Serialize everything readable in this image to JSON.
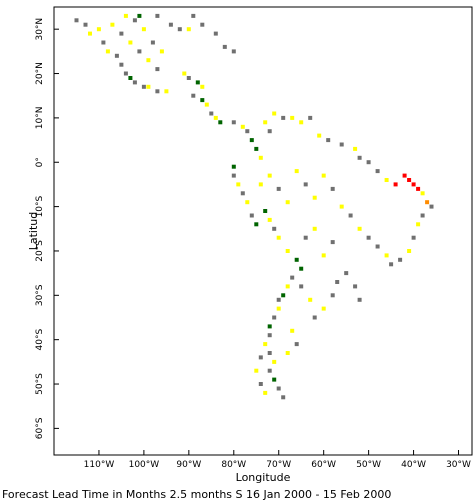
{
  "map": {
    "x_axis_label": "Longitude",
    "y_axis_label": "Latitud",
    "caption": "Forecast Lead Time in Months 2.5 months S 16 Jan 2000 - 15 Feb 2000",
    "lon_range": [
      -120,
      -27
    ],
    "lat_range": [
      -66,
      35
    ],
    "lon_ticks": [
      {
        "value": -110,
        "label": "110°W"
      },
      {
        "value": -100,
        "label": "100°W"
      },
      {
        "value": -90,
        "label": "90°W"
      },
      {
        "value": -80,
        "label": "80°W"
      },
      {
        "value": -70,
        "label": "70°W"
      },
      {
        "value": -60,
        "label": "60°W"
      },
      {
        "value": -50,
        "label": "50°W"
      },
      {
        "value": -40,
        "label": "40°W"
      },
      {
        "value": -30,
        "label": "30°W"
      }
    ],
    "lat_ticks": [
      {
        "value": 30,
        "label": "30°N"
      },
      {
        "value": 20,
        "label": "20°N"
      },
      {
        "value": 10,
        "label": "10°N"
      },
      {
        "value": 0,
        "label": "0°"
      },
      {
        "value": -10,
        "label": "10°S"
      },
      {
        "value": -20,
        "label": "20°S"
      },
      {
        "value": -30,
        "label": "30°S"
      },
      {
        "value": -40,
        "label": "40°S"
      },
      {
        "value": -50,
        "label": "50°S"
      },
      {
        "value": -60,
        "label": "60°S"
      }
    ],
    "colors": {
      "gray": "#707070",
      "yellow": "#ffff00",
      "green": "#006400",
      "red": "#ff0000",
      "orange": "#ff8c00"
    },
    "cells": [
      {
        "lon": -115,
        "lat": 32,
        "color": "gray"
      },
      {
        "lon": -113,
        "lat": 31,
        "color": "gray"
      },
      {
        "lon": -112,
        "lat": 29,
        "color": "yellow"
      },
      {
        "lon": -110,
        "lat": 30,
        "color": "yellow"
      },
      {
        "lon": -109,
        "lat": 27,
        "color": "gray"
      },
      {
        "lon": -108,
        "lat": 25,
        "color": "yellow"
      },
      {
        "lon": -106,
        "lat": 24,
        "color": "gray"
      },
      {
        "lon": -105,
        "lat": 22,
        "color": "gray"
      },
      {
        "lon": -104,
        "lat": 20,
        "color": "gray"
      },
      {
        "lon": -103,
        "lat": 19,
        "color": "green"
      },
      {
        "lon": -102,
        "lat": 18,
        "color": "gray"
      },
      {
        "lon": -100,
        "lat": 17,
        "color": "gray"
      },
      {
        "lon": -99,
        "lat": 17,
        "color": "yellow"
      },
      {
        "lon": -97,
        "lat": 16,
        "color": "gray"
      },
      {
        "lon": -95,
        "lat": 16,
        "color": "yellow"
      },
      {
        "lon": -107,
        "lat": 31,
        "color": "yellow"
      },
      {
        "lon": -105,
        "lat": 29,
        "color": "gray"
      },
      {
        "lon": -104,
        "lat": 33,
        "color": "yellow"
      },
      {
        "lon": -103,
        "lat": 27,
        "color": "yellow"
      },
      {
        "lon": -102,
        "lat": 32,
        "color": "gray"
      },
      {
        "lon": -101,
        "lat": 25,
        "color": "gray"
      },
      {
        "lon": -100,
        "lat": 30,
        "color": "yellow"
      },
      {
        "lon": -99,
        "lat": 23,
        "color": "yellow"
      },
      {
        "lon": -98,
        "lat": 27,
        "color": "gray"
      },
      {
        "lon": -97,
        "lat": 21,
        "color": "gray"
      },
      {
        "lon": -96,
        "lat": 25,
        "color": "yellow"
      },
      {
        "lon": -94,
        "lat": 31,
        "color": "gray"
      },
      {
        "lon": -92,
        "lat": 30,
        "color": "gray"
      },
      {
        "lon": -90,
        "lat": 30,
        "color": "yellow"
      },
      {
        "lon": -87,
        "lat": 31,
        "color": "gray"
      },
      {
        "lon": -84,
        "lat": 29,
        "color": "gray"
      },
      {
        "lon": -82,
        "lat": 26,
        "color": "gray"
      },
      {
        "lon": -80,
        "lat": 25,
        "color": "gray"
      },
      {
        "lon": -101,
        "lat": 33,
        "color": "green"
      },
      {
        "lon": -97,
        "lat": 33,
        "color": "gray"
      },
      {
        "lon": -89,
        "lat": 33,
        "color": "gray"
      },
      {
        "lon": -91,
        "lat": 20,
        "color": "yellow"
      },
      {
        "lon": -90,
        "lat": 19,
        "color": "gray"
      },
      {
        "lon": -88,
        "lat": 18,
        "color": "green"
      },
      {
        "lon": -87,
        "lat": 17,
        "color": "yellow"
      },
      {
        "lon": -89,
        "lat": 15,
        "color": "gray"
      },
      {
        "lon": -87,
        "lat": 14,
        "color": "green"
      },
      {
        "lon": -86,
        "lat": 13,
        "color": "yellow"
      },
      {
        "lon": -85,
        "lat": 11,
        "color": "gray"
      },
      {
        "lon": -84,
        "lat": 10,
        "color": "yellow"
      },
      {
        "lon": -83,
        "lat": 9,
        "color": "green"
      },
      {
        "lon": -80,
        "lat": 9,
        "color": "gray"
      },
      {
        "lon": -78,
        "lat": 8,
        "color": "yellow"
      },
      {
        "lon": -77,
        "lat": 7,
        "color": "gray"
      },
      {
        "lon": -76,
        "lat": 5,
        "color": "green"
      },
      {
        "lon": -75,
        "lat": 3,
        "color": "green"
      },
      {
        "lon": -74,
        "lat": 1,
        "color": "yellow"
      },
      {
        "lon": -73,
        "lat": 9,
        "color": "yellow"
      },
      {
        "lon": -72,
        "lat": 7,
        "color": "gray"
      },
      {
        "lon": -71,
        "lat": 11,
        "color": "yellow"
      },
      {
        "lon": -69,
        "lat": 10,
        "color": "gray"
      },
      {
        "lon": -67,
        "lat": 10,
        "color": "yellow"
      },
      {
        "lon": -65,
        "lat": 9,
        "color": "yellow"
      },
      {
        "lon": -63,
        "lat": 10,
        "color": "gray"
      },
      {
        "lon": -61,
        "lat": 6,
        "color": "yellow"
      },
      {
        "lon": -59,
        "lat": 5,
        "color": "gray"
      },
      {
        "lon": -56,
        "lat": 4,
        "color": "gray"
      },
      {
        "lon": -53,
        "lat": 3,
        "color": "yellow"
      },
      {
        "lon": -52,
        "lat": 1,
        "color": "gray"
      },
      {
        "lon": -50,
        "lat": 0,
        "color": "gray"
      },
      {
        "lon": -80,
        "lat": -1,
        "color": "green"
      },
      {
        "lon": -80,
        "lat": -3,
        "color": "gray"
      },
      {
        "lon": -79,
        "lat": -5,
        "color": "yellow"
      },
      {
        "lon": -78,
        "lat": -7,
        "color": "gray"
      },
      {
        "lon": -77,
        "lat": -9,
        "color": "yellow"
      },
      {
        "lon": -76,
        "lat": -12,
        "color": "gray"
      },
      {
        "lon": -75,
        "lat": -14,
        "color": "green"
      },
      {
        "lon": -73,
        "lat": -11,
        "color": "green"
      },
      {
        "lon": -72,
        "lat": -13,
        "color": "yellow"
      },
      {
        "lon": -71,
        "lat": -15,
        "color": "gray"
      },
      {
        "lon": -70,
        "lat": -17,
        "color": "yellow"
      },
      {
        "lon": -74,
        "lat": -5,
        "color": "yellow"
      },
      {
        "lon": -72,
        "lat": -3,
        "color": "yellow"
      },
      {
        "lon": -70,
        "lat": -6,
        "color": "gray"
      },
      {
        "lon": -68,
        "lat": -9,
        "color": "yellow"
      },
      {
        "lon": -66,
        "lat": -2,
        "color": "yellow"
      },
      {
        "lon": -64,
        "lat": -5,
        "color": "gray"
      },
      {
        "lon": -62,
        "lat": -8,
        "color": "yellow"
      },
      {
        "lon": -60,
        "lat": -3,
        "color": "yellow"
      },
      {
        "lon": -58,
        "lat": -6,
        "color": "gray"
      },
      {
        "lon": -56,
        "lat": -10,
        "color": "yellow"
      },
      {
        "lon": -54,
        "lat": -12,
        "color": "gray"
      },
      {
        "lon": -52,
        "lat": -15,
        "color": "yellow"
      },
      {
        "lon": -50,
        "lat": -17,
        "color": "gray"
      },
      {
        "lon": -48,
        "lat": -19,
        "color": "gray"
      },
      {
        "lon": -46,
        "lat": -21,
        "color": "yellow"
      },
      {
        "lon": -45,
        "lat": -23,
        "color": "gray"
      },
      {
        "lon": -48,
        "lat": -2,
        "color": "gray"
      },
      {
        "lon": -46,
        "lat": -4,
        "color": "yellow"
      },
      {
        "lon": -44,
        "lat": -5,
        "color": "red"
      },
      {
        "lon": -42,
        "lat": -3,
        "color": "red"
      },
      {
        "lon": -41,
        "lat": -4,
        "color": "red"
      },
      {
        "lon": -40,
        "lat": -5,
        "color": "red"
      },
      {
        "lon": -39,
        "lat": -6,
        "color": "red"
      },
      {
        "lon": -38,
        "lat": -7,
        "color": "yellow"
      },
      {
        "lon": -37,
        "lat": -9,
        "color": "orange"
      },
      {
        "lon": -36,
        "lat": -10,
        "color": "gray"
      },
      {
        "lon": -38,
        "lat": -12,
        "color": "gray"
      },
      {
        "lon": -39,
        "lat": -14,
        "color": "yellow"
      },
      {
        "lon": -40,
        "lat": -17,
        "color": "gray"
      },
      {
        "lon": -41,
        "lat": -20,
        "color": "yellow"
      },
      {
        "lon": -43,
        "lat": -22,
        "color": "gray"
      },
      {
        "lon": -68,
        "lat": -20,
        "color": "yellow"
      },
      {
        "lon": -66,
        "lat": -22,
        "color": "green"
      },
      {
        "lon": -65,
        "lat": -24,
        "color": "green"
      },
      {
        "lon": -67,
        "lat": -26,
        "color": "gray"
      },
      {
        "lon": -68,
        "lat": -28,
        "color": "yellow"
      },
      {
        "lon": -69,
        "lat": -30,
        "color": "green"
      },
      {
        "lon": -70,
        "lat": -31,
        "color": "gray"
      },
      {
        "lon": -70,
        "lat": -33,
        "color": "yellow"
      },
      {
        "lon": -71,
        "lat": -35,
        "color": "gray"
      },
      {
        "lon": -72,
        "lat": -37,
        "color": "green"
      },
      {
        "lon": -72,
        "lat": -39,
        "color": "gray"
      },
      {
        "lon": -73,
        "lat": -41,
        "color": "yellow"
      },
      {
        "lon": -72,
        "lat": -43,
        "color": "gray"
      },
      {
        "lon": -71,
        "lat": -45,
        "color": "yellow"
      },
      {
        "lon": -72,
        "lat": -47,
        "color": "gray"
      },
      {
        "lon": -71,
        "lat": -49,
        "color": "green"
      },
      {
        "lon": -70,
        "lat": -51,
        "color": "gray"
      },
      {
        "lon": -69,
        "lat": -53,
        "color": "gray"
      },
      {
        "lon": -73,
        "lat": -52,
        "color": "yellow"
      },
      {
        "lon": -74,
        "lat": -50,
        "color": "gray"
      },
      {
        "lon": -75,
        "lat": -47,
        "color": "yellow"
      },
      {
        "lon": -74,
        "lat": -44,
        "color": "gray"
      },
      {
        "lon": -65,
        "lat": -28,
        "color": "gray"
      },
      {
        "lon": -63,
        "lat": -31,
        "color": "yellow"
      },
      {
        "lon": -62,
        "lat": -35,
        "color": "gray"
      },
      {
        "lon": -60,
        "lat": -33,
        "color": "yellow"
      },
      {
        "lon": -58,
        "lat": -30,
        "color": "gray"
      },
      {
        "lon": -57,
        "lat": -27,
        "color": "gray"
      },
      {
        "lon": -55,
        "lat": -25,
        "color": "gray"
      },
      {
        "lon": -53,
        "lat": -28,
        "color": "gray"
      },
      {
        "lon": -52,
        "lat": -31,
        "color": "gray"
      },
      {
        "lon": -67,
        "lat": -38,
        "color": "yellow"
      },
      {
        "lon": -66,
        "lat": -41,
        "color": "gray"
      },
      {
        "lon": -68,
        "lat": -43,
        "color": "yellow"
      },
      {
        "lon": -60,
        "lat": -21,
        "color": "yellow"
      },
      {
        "lon": -58,
        "lat": -18,
        "color": "gray"
      },
      {
        "lon": -62,
        "lat": -15,
        "color": "yellow"
      },
      {
        "lon": -64,
        "lat": -17,
        "color": "gray"
      }
    ]
  }
}
